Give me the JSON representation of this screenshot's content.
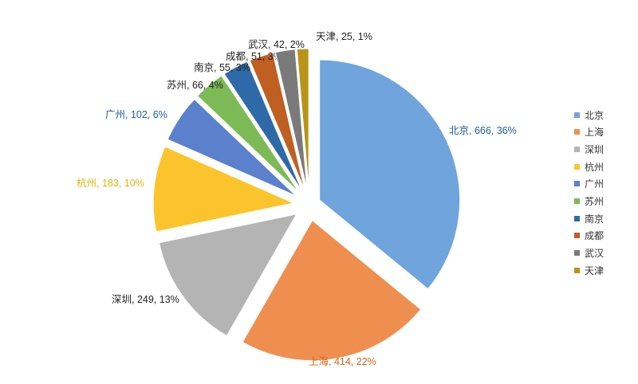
{
  "chart_data": {
    "type": "pie",
    "categories": [
      "北京",
      "上海",
      "深圳",
      "杭州",
      "广州",
      "苏州",
      "南京",
      "成都",
      "武汉",
      "天津"
    ],
    "values": [
      666,
      414,
      249,
      183,
      102,
      66,
      55,
      51,
      42,
      25
    ],
    "percents": [
      "36%",
      "22%",
      "13%",
      "10%",
      "6%",
      "4%",
      "3%",
      "3%",
      "2%",
      "1%"
    ],
    "labels": [
      "北京, 666, 36%",
      "上海, 414, 22%",
      "深圳, 249, 13%",
      "杭州, 183, 10%",
      "广州, 102, 6%",
      "苏州, 66, 4%",
      "南京, 55, 3%",
      "成都, 51, 3%",
      "武汉, 42, 2%",
      "天津, 25, 1%"
    ],
    "colors": [
      "#6fa4dc",
      "#ef8f4f",
      "#b4b4b4",
      "#fcc42c",
      "#5b80cc",
      "#7cba56",
      "#2f6aa8",
      "#c05f22",
      "#7a7a7a",
      "#b89418"
    ],
    "exploded": true,
    "legend_position": "right"
  }
}
